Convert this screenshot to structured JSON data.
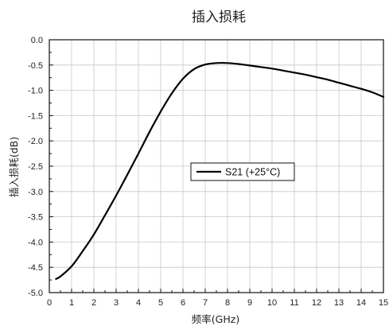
{
  "chart_data": {
    "type": "line",
    "title": "插入损耗",
    "xlabel": "频率(GHz)",
    "ylabel": "插入损耗(dB)",
    "xlim": [
      0,
      15
    ],
    "ylim": [
      -5.0,
      0.0
    ],
    "x_ticks": [
      "0",
      "1",
      "2",
      "3",
      "4",
      "5",
      "6",
      "7",
      "8",
      "9",
      "10",
      "11",
      "12",
      "13",
      "14",
      "15"
    ],
    "y_ticks": [
      "0.0",
      "-0.5",
      "-1.0",
      "-1.5",
      "-2.0",
      "-2.5",
      "-3.0",
      "-3.5",
      "-4.0",
      "-4.5",
      "-5.0"
    ],
    "grid": true,
    "legend_position": "center-right",
    "series": [
      {
        "name": "S21 (+25°C)",
        "color": "#000000",
        "x": [
          0.3,
          0.5,
          1.0,
          1.5,
          2.0,
          2.5,
          3.0,
          3.5,
          4.0,
          4.5,
          5.0,
          5.5,
          6.0,
          6.5,
          7.0,
          7.5,
          8.0,
          8.5,
          9.0,
          9.5,
          10.0,
          10.5,
          11.0,
          11.5,
          12.0,
          12.5,
          13.0,
          13.5,
          14.0,
          14.5,
          15.0
        ],
        "y": [
          -4.73,
          -4.68,
          -4.48,
          -4.18,
          -3.85,
          -3.47,
          -3.08,
          -2.67,
          -2.25,
          -1.82,
          -1.42,
          -1.06,
          -0.77,
          -0.58,
          -0.49,
          -0.46,
          -0.46,
          -0.48,
          -0.51,
          -0.54,
          -0.57,
          -0.61,
          -0.65,
          -0.69,
          -0.74,
          -0.79,
          -0.85,
          -0.91,
          -0.97,
          -1.04,
          -1.13
        ]
      }
    ]
  }
}
